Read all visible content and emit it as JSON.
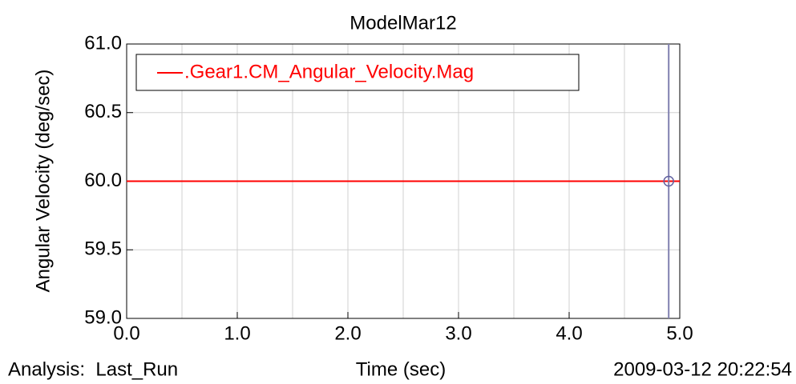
{
  "chart_data": {
    "type": "line",
    "title": "ModelMar12",
    "ylabel": "Angular Velocity (deg/sec)",
    "xlabel": "Time (sec)",
    "footer_left": "Analysis:  Last_Run",
    "footer_right": "2009-03-12 20:22:54",
    "x": [
      0,
      5.0
    ],
    "series": [
      {
        "name": ".Gear1.CM_Angular_Velocity.Mag",
        "color": "#ff0000",
        "values": [
          60.0,
          60.0
        ]
      }
    ],
    "cursor": {
      "x": 4.9,
      "y": 60.0,
      "color": "#8080b0"
    },
    "xlim": [
      0,
      5.0
    ],
    "ylim": [
      59.0,
      61.0
    ],
    "xticks": [
      {
        "value": 0,
        "label": "0.0"
      },
      {
        "value": 1,
        "label": "1.0"
      },
      {
        "value": 2,
        "label": "2.0"
      },
      {
        "value": 3,
        "label": "3.0"
      },
      {
        "value": 4,
        "label": "4.0"
      },
      {
        "value": 5,
        "label": "5.0"
      }
    ],
    "x_minor_grid": [
      0.5,
      1.5,
      2.5,
      3.5,
      4.5
    ],
    "yticks": [
      {
        "value": 59,
        "label": "59.0"
      },
      {
        "value": 59.5,
        "label": "59.5"
      },
      {
        "value": 60,
        "label": "60.0"
      },
      {
        "value": 60.5,
        "label": "60.5"
      },
      {
        "value": 61,
        "label": "61.0"
      }
    ],
    "grid": true,
    "legend": "upper left"
  }
}
